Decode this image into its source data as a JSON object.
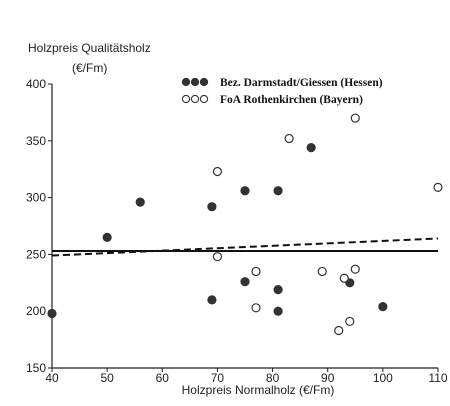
{
  "chart_data": {
    "type": "scatter",
    "ylabel_line1": "Holzpreis Qualitätsholz",
    "ylabel_line2": "(€/Fm)",
    "xlabel": "Holzpreis Normalholz (€/Fm)",
    "xlim": [
      40,
      110
    ],
    "ylim": [
      150,
      400
    ],
    "xticks": [
      40,
      50,
      60,
      70,
      80,
      90,
      100,
      110
    ],
    "yticks": [
      150,
      200,
      250,
      300,
      350,
      400
    ],
    "grid": false,
    "legend_position": "top-right",
    "series": [
      {
        "name": "Bez. Darmstadt/Giessen (Hessen)",
        "marker": "filled-circle",
        "color": "#333333",
        "points": [
          {
            "x": 40,
            "y": 198
          },
          {
            "x": 50,
            "y": 265
          },
          {
            "x": 56,
            "y": 296
          },
          {
            "x": 69,
            "y": 292
          },
          {
            "x": 69,
            "y": 210
          },
          {
            "x": 75,
            "y": 306
          },
          {
            "x": 75,
            "y": 226
          },
          {
            "x": 81,
            "y": 306
          },
          {
            "x": 81,
            "y": 219
          },
          {
            "x": 81,
            "y": 200
          },
          {
            "x": 87,
            "y": 344
          },
          {
            "x": 94,
            "y": 225
          },
          {
            "x": 100,
            "y": 204
          }
        ],
        "trend": {
          "style": "solid",
          "x": [
            40,
            110
          ],
          "y": [
            253,
            253
          ]
        }
      },
      {
        "name": "FoA Rothenkirchen (Bayern)",
        "marker": "open-circle",
        "color": "#333333",
        "points": [
          {
            "x": 70,
            "y": 323
          },
          {
            "x": 70,
            "y": 248
          },
          {
            "x": 77,
            "y": 235
          },
          {
            "x": 77,
            "y": 203
          },
          {
            "x": 83,
            "y": 352
          },
          {
            "x": 89,
            "y": 235
          },
          {
            "x": 92,
            "y": 183
          },
          {
            "x": 93,
            "y": 229
          },
          {
            "x": 95,
            "y": 370
          },
          {
            "x": 95,
            "y": 237
          },
          {
            "x": 94,
            "y": 191
          },
          {
            "x": 110,
            "y": 309
          }
        ],
        "trend": {
          "style": "dashed",
          "x": [
            40,
            110
          ],
          "y": [
            249,
            264
          ]
        }
      }
    ]
  }
}
